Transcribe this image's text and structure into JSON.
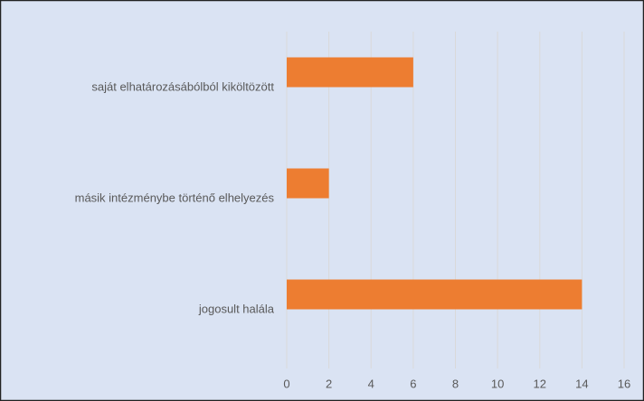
{
  "chart_data": {
    "type": "bar",
    "orientation": "horizontal",
    "categories": [
      "saját elhatározásábólból kiköltözött",
      "másik intézménybe történő elhelyezés",
      "jogosult halála"
    ],
    "values": [
      6,
      2,
      14
    ],
    "color": "#ed7d31",
    "xlim": [
      0,
      16
    ],
    "xticks": [
      0,
      2,
      4,
      6,
      8,
      10,
      12,
      14,
      16
    ],
    "grid": true
  }
}
